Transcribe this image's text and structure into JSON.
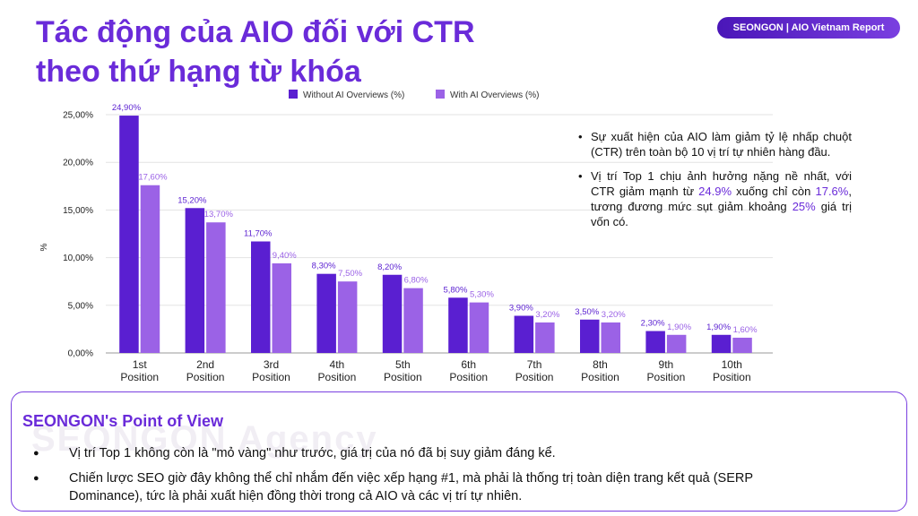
{
  "header": {
    "title_line1": "Tác động của AIO đối với CTR",
    "title_line2": "theo thứ hạng từ khóa",
    "badge": "SEONGON | AIO Vietnam Report"
  },
  "chart_data": {
    "type": "bar",
    "categories": [
      "1st\nPosition",
      "2nd\nPosition",
      "3rd\nPosition",
      "4th\nPosition",
      "5th\nPosition",
      "6th\nPosition",
      "7th\nPosition",
      "8th\nPosition",
      "9th\nPosition",
      "10th\nPosition"
    ],
    "series": [
      {
        "name": "Without AI Overviews (%)",
        "color": "#5a1fd1",
        "values": [
          24.9,
          15.2,
          11.7,
          8.3,
          8.2,
          5.8,
          3.9,
          3.5,
          2.3,
          1.9
        ],
        "labels": [
          "24,90%",
          "15,20%",
          "11,70%",
          "8,30%",
          "8,20%",
          "5,80%",
          "3,90%",
          "3,50%",
          "2,30%",
          "1,90%"
        ]
      },
      {
        "name": "With AI Overviews (%)",
        "color": "#9b62e6",
        "values": [
          17.6,
          13.7,
          9.4,
          7.5,
          6.8,
          5.3,
          3.2,
          3.2,
          1.9,
          1.6
        ],
        "labels": [
          "17,60%",
          "13,70%",
          "9,40%",
          "7,50%",
          "6,80%",
          "5,30%",
          "3,20%",
          "3,20%",
          "1,90%",
          "1,60%"
        ]
      }
    ],
    "ylabel": "%",
    "ylim": [
      0,
      25
    ],
    "yticks": [
      0,
      5,
      10,
      15,
      20,
      25
    ],
    "ytick_labels": [
      "0,00%",
      "5,00%",
      "10,00%",
      "15,00%",
      "20,00%",
      "25,00%"
    ],
    "grid": true,
    "legend_position": "top"
  },
  "notes": {
    "item1": "Sự xuất hiện của AIO làm giảm tỷ lệ nhấp chuột (CTR) trên toàn bộ 10 vị trí tự nhiên hàng đầu.",
    "item2_a": "Vị trí Top 1 chịu ảnh hưởng nặng nề nhất, với CTR giảm mạnh từ ",
    "item2_hl1": "24.9%",
    "item2_b": " xuống chỉ còn ",
    "item2_hl2": "17.6%",
    "item2_c": ", tương đương mức sụt giảm khoảng ",
    "item2_hl3": "25%",
    "item2_d": " giá trị vốn có."
  },
  "pov": {
    "title": "SEONGON's Point of View",
    "watermark": "SEONGON Agency",
    "item1": "Vị trí Top 1 không còn là \"mỏ vàng\" như trước, giá trị của nó đã bị suy giảm đáng kể.",
    "item2": "Chiến lược SEO giờ đây không thể chỉ nhắm đến việc xếp hạng #1, mà phải là thống trị toàn diện trang kết quả (SERP Dominance), tức là phải xuất hiện đồng thời trong cả AIO và các vị trí tự nhiên."
  }
}
